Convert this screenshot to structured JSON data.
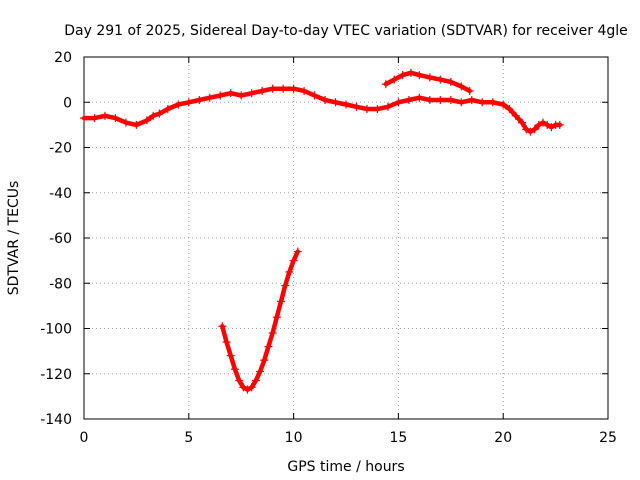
{
  "chart_data": {
    "type": "scatter",
    "title": "Day 291 of 2025, Sidereal Day-to-day VTEC variation (SDTVAR) for receiver 4gle",
    "xlabel": "GPS time / hours",
    "ylabel": "SDTVAR / TECUs",
    "xlim": [
      0,
      25
    ],
    "ylim": [
      -140,
      20
    ],
    "xticks": [
      0,
      5,
      10,
      15,
      20,
      25
    ],
    "xtick_labels": [
      "0",
      "5",
      "10",
      "15",
      "20",
      "25"
    ],
    "yticks": [
      20,
      0,
      -20,
      -40,
      -60,
      -80,
      -100,
      -120,
      -140
    ],
    "ytick_labels": [
      "20",
      "0",
      "-20",
      "-40",
      "-60",
      "-80",
      "-100",
      "-120",
      "-140"
    ],
    "grid": true,
    "color": "#ff0000",
    "marker": "plus",
    "series": [
      {
        "name": "main",
        "x": [
          0.0,
          0.5,
          1.0,
          1.5,
          2.0,
          2.5,
          3.0,
          3.3,
          3.6,
          4.0,
          4.5,
          5.0,
          5.5,
          6.0,
          6.5,
          7.0,
          7.5,
          8.0,
          8.5,
          9.0,
          9.5,
          10.0,
          10.5,
          11.0,
          11.5,
          12.0,
          12.5,
          13.0,
          13.5,
          14.0,
          14.5,
          15.0,
          15.5,
          16.0,
          16.5,
          17.0,
          17.5,
          18.0,
          18.5,
          19.0,
          19.5,
          20.0,
          20.3,
          20.6,
          20.9
        ],
        "y": [
          -7,
          -7,
          -6,
          -7,
          -9,
          -10,
          -8,
          -6,
          -5,
          -3,
          -1,
          0,
          1,
          2,
          3,
          4,
          3,
          4,
          5,
          6,
          6,
          6,
          5,
          3,
          1,
          0,
          -1,
          -2,
          -3,
          -3,
          -2,
          0,
          1,
          2,
          1,
          1,
          1,
          0,
          1,
          0,
          0,
          -1,
          -3,
          -6,
          -9
        ]
      },
      {
        "name": "tail",
        "x": [
          20.9,
          21.1,
          21.3,
          21.5,
          21.7,
          21.9,
          22.1,
          22.3,
          22.5,
          22.7
        ],
        "y": [
          -9,
          -12,
          -13,
          -12,
          -10,
          -9,
          -10,
          -11,
          -10,
          -10
        ]
      },
      {
        "name": "upper-arc",
        "x": [
          14.4,
          14.8,
          15.2,
          15.6,
          16.0,
          16.5,
          17.0,
          17.5,
          18.0,
          18.4
        ],
        "y": [
          8,
          10,
          12,
          13,
          12,
          11,
          10,
          9,
          7,
          5
        ]
      },
      {
        "name": "dip",
        "x": [
          6.6,
          6.8,
          7.0,
          7.2,
          7.4,
          7.6,
          7.8,
          8.0,
          8.2,
          8.4,
          8.6,
          8.8,
          9.0,
          9.2,
          9.4,
          9.6,
          9.8,
          10.0,
          10.2
        ],
        "y": [
          -99,
          -106,
          -112,
          -118,
          -123,
          -126,
          -127,
          -126,
          -123,
          -119,
          -114,
          -108,
          -102,
          -95,
          -88,
          -81,
          -75,
          -70,
          -66
        ]
      }
    ]
  }
}
